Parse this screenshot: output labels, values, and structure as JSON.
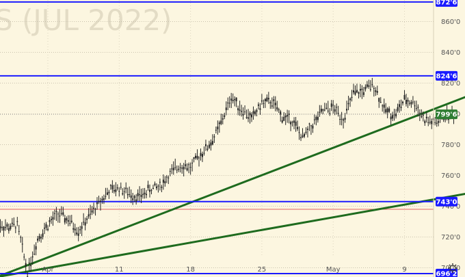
{
  "watermark": "S (JUL 2022)",
  "colors": {
    "background": "#fcf6e0",
    "candle": "#222222",
    "level_line": "#1a1aff",
    "trend_line": "#1e6b1e",
    "red_line": "#e06060",
    "current_label_bg": "#2e7d32",
    "level_label_bg": "#1a1aff"
  },
  "chart_data": {
    "type": "candlestick",
    "title": "",
    "y_axis": {
      "min": 694,
      "max": 874,
      "ticks": [
        "700'0",
        "720'0",
        "740'0",
        "760'0",
        "780'0",
        "800'0",
        "820'0",
        "840'0",
        "860'0"
      ]
    },
    "x_axis": {
      "ticks": [
        "Apr",
        "11",
        "18",
        "25",
        "May",
        "9"
      ]
    },
    "levels": [
      {
        "value": 872.75,
        "label": "872'6"
      },
      {
        "value": 824.75,
        "label": "824'6"
      },
      {
        "value": 743.0,
        "label": "743'0"
      },
      {
        "value": 696.25,
        "label": "696'2"
      }
    ],
    "current_price": {
      "value": 799.75,
      "label": "799'6"
    },
    "red_lines": [
      875.0,
      738.0
    ],
    "trend_lines": [
      {
        "from": {
          "day": -5,
          "price": 694.0
        },
        "to": {
          "day": 52,
          "price": 839.0
        }
      },
      {
        "from": {
          "day": -5,
          "price": 694.0
        },
        "to": {
          "day": 52,
          "price": 761.0
        }
      }
    ],
    "series": [
      {
        "name": "",
        "points": [
          [
            -5,
            729
          ],
          [
            -4,
            726
          ],
          [
            -3,
            728
          ],
          [
            -2,
            697
          ],
          [
            -1,
            719
          ],
          [
            0,
            728
          ],
          [
            1,
            735
          ],
          [
            2,
            731
          ],
          [
            3,
            724
          ],
          [
            4,
            733
          ],
          [
            5,
            742
          ],
          [
            6,
            750
          ],
          [
            7,
            752
          ],
          [
            8,
            748
          ],
          [
            9,
            746
          ],
          [
            10,
            751
          ],
          [
            11,
            753
          ],
          [
            12,
            761
          ],
          [
            13,
            767
          ],
          [
            14,
            765
          ],
          [
            15,
            774
          ],
          [
            16,
            781
          ],
          [
            17,
            794
          ],
          [
            18,
            811
          ],
          [
            19,
            803
          ],
          [
            20,
            797
          ],
          [
            21,
            807
          ],
          [
            22,
            808
          ],
          [
            23,
            798
          ],
          [
            24,
            796
          ],
          [
            25,
            784
          ],
          [
            26,
            793
          ],
          [
            27,
            802
          ],
          [
            28,
            804
          ],
          [
            29,
            797
          ],
          [
            30,
            813
          ],
          [
            31,
            815
          ],
          [
            32,
            819
          ],
          [
            33,
            803
          ],
          [
            34,
            799
          ],
          [
            35,
            809
          ],
          [
            36,
            807
          ],
          [
            37,
            796
          ],
          [
            38,
            794
          ],
          [
            39,
            799
          ],
          [
            40,
            799.75
          ]
        ]
      }
    ]
  }
}
